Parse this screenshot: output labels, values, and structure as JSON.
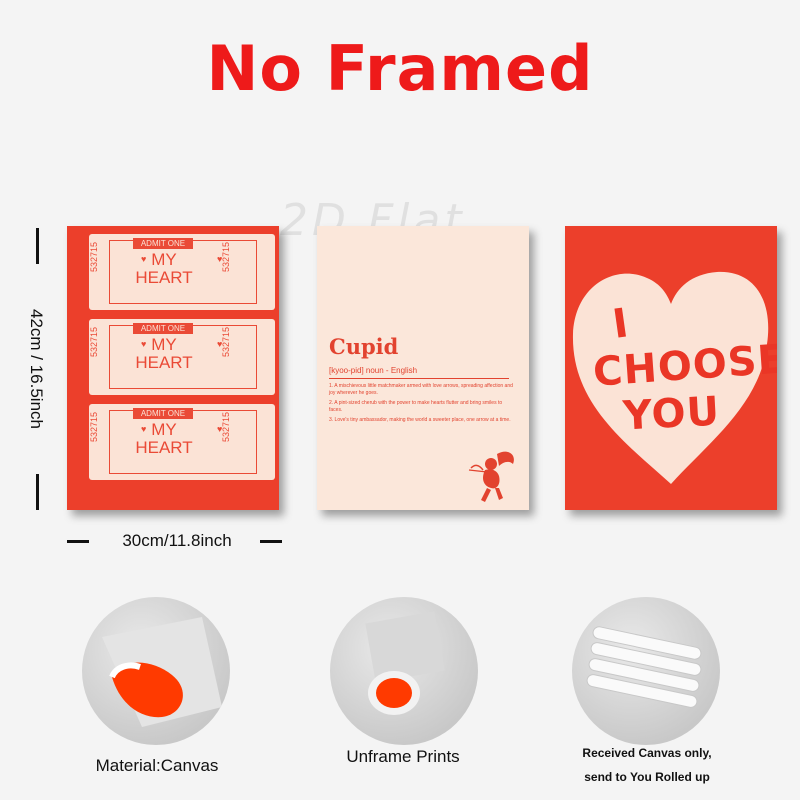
{
  "header": {
    "title": "No Framed",
    "watermark": "2D Flat"
  },
  "dimensions": {
    "height_label": "42cm / 16.5inch",
    "width_label": "30cm/11.8inch"
  },
  "poster1": {
    "tickets": [
      {
        "admit": "ADMIT ONE",
        "line1": "MY",
        "line2": "HEART",
        "number": "532715"
      },
      {
        "admit": "ADMIT ONE",
        "line1": "MY",
        "line2": "HEART",
        "number": "532715"
      },
      {
        "admit": "ADMIT ONE",
        "line1": "MY",
        "line2": "HEART",
        "number": "532715"
      }
    ]
  },
  "poster2": {
    "word": "Cupid",
    "pronunciation": "[kyoo-pid] noun - English",
    "definitions": [
      "1. A mischievous little matchmaker armed with love arrows, spreading affection and joy wherever he goes.",
      "2. A pint-sized cherub with the power to make hearts flutter and bring smiles to faces.",
      "3. Love's tiny ambassador, making the world a sweeter place, one arrow at a time."
    ]
  },
  "poster3": {
    "line1": "I",
    "line2": "CHOOSE",
    "line3": "YOU"
  },
  "features": [
    {
      "caption": "Material:Canvas"
    },
    {
      "caption": "Unframe  Prints"
    },
    {
      "caption_line1": "Received Canvas only,",
      "caption_line2": "send to You Rolled up"
    }
  ],
  "colors": {
    "accent_red": "#ee1a1a",
    "poster_red": "#ec3f2b",
    "cream": "#fbe3d6"
  }
}
